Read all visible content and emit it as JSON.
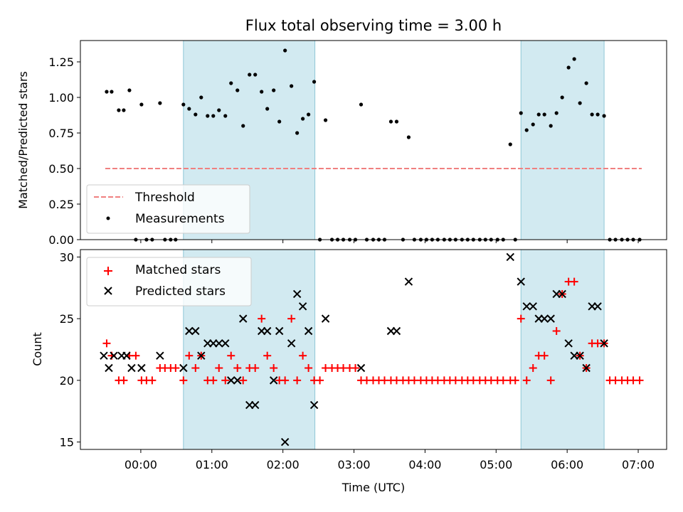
{
  "chart_data": [
    {
      "type": "scatter",
      "title": "Flux total observing time = 3.00 h",
      "xlabel": "",
      "ylabel": "Matched/Predicted stars",
      "ylim": [
        0,
        1.4
      ],
      "yticks": [
        "0.00",
        "0.25",
        "0.50",
        "0.75",
        "1.00",
        "1.25"
      ],
      "xlim_hours": [
        -0.85,
        7.4
      ],
      "shaded_intervals_hours": [
        [
          0.6,
          2.45
        ],
        [
          5.35,
          6.52
        ]
      ],
      "shade_color": "#add8e6",
      "threshold": {
        "name": "Threshold",
        "value": 0.5,
        "x_range_hours": [
          -0.5,
          7.05
        ],
        "color": "#f08080"
      },
      "legend_position": "lower-left",
      "series": [
        {
          "name": "Measurements",
          "color": "#000000",
          "points": [
            [
              -0.48,
              1.04
            ],
            [
              -0.41,
              1.04
            ],
            [
              -0.31,
              0.91
            ],
            [
              -0.24,
              0.91
            ],
            [
              -0.16,
              1.05
            ],
            [
              -0.07,
              0
            ],
            [
              0.01,
              0.95
            ],
            [
              0.08,
              0
            ],
            [
              0.16,
              0
            ],
            [
              0.27,
              0.96
            ],
            [
              0.34,
              0
            ],
            [
              0.42,
              0
            ],
            [
              0.49,
              0
            ],
            [
              0.6,
              0.95
            ],
            [
              0.68,
              0.92
            ],
            [
              0.77,
              0.88
            ],
            [
              0.85,
              1.0
            ],
            [
              0.94,
              0.87
            ],
            [
              1.02,
              0.87
            ],
            [
              1.1,
              0.91
            ],
            [
              1.19,
              0.87
            ],
            [
              1.27,
              1.1
            ],
            [
              1.36,
              1.05
            ],
            [
              1.44,
              0.8
            ],
            [
              1.53,
              1.16
            ],
            [
              1.61,
              1.16
            ],
            [
              1.7,
              1.04
            ],
            [
              1.78,
              0.92
            ],
            [
              1.87,
              1.05
            ],
            [
              1.95,
              0.83
            ],
            [
              2.03,
              1.33
            ],
            [
              2.12,
              1.08
            ],
            [
              2.2,
              0.75
            ],
            [
              2.28,
              0.85
            ],
            [
              2.36,
              0.88
            ],
            [
              2.44,
              1.11
            ],
            [
              2.52,
              0
            ],
            [
              2.6,
              0.84
            ],
            [
              2.69,
              0
            ],
            [
              2.77,
              0
            ],
            [
              2.85,
              0
            ],
            [
              2.94,
              0
            ],
            [
              3.02,
              0
            ],
            [
              3.1,
              0.95
            ],
            [
              3.18,
              0
            ],
            [
              3.27,
              0
            ],
            [
              3.35,
              0
            ],
            [
              3.43,
              0
            ],
            [
              3.52,
              0.83
            ],
            [
              3.6,
              0.83
            ],
            [
              3.69,
              0
            ],
            [
              3.77,
              0.72
            ],
            [
              3.85,
              0
            ],
            [
              3.94,
              0
            ],
            [
              4.02,
              0
            ],
            [
              4.1,
              0
            ],
            [
              4.18,
              0
            ],
            [
              4.27,
              0
            ],
            [
              4.35,
              0
            ],
            [
              4.43,
              0
            ],
            [
              4.52,
              0
            ],
            [
              4.6,
              0
            ],
            [
              4.68,
              0
            ],
            [
              4.77,
              0
            ],
            [
              4.85,
              0
            ],
            [
              4.93,
              0
            ],
            [
              5.02,
              0
            ],
            [
              5.1,
              0
            ],
            [
              5.2,
              0.67
            ],
            [
              5.27,
              0
            ],
            [
              5.35,
              0.89
            ],
            [
              5.43,
              0.77
            ],
            [
              5.52,
              0.81
            ],
            [
              5.6,
              0.88
            ],
            [
              5.68,
              0.88
            ],
            [
              5.77,
              0.8
            ],
            [
              5.85,
              0.89
            ],
            [
              5.93,
              1.0
            ],
            [
              6.02,
              1.21
            ],
            [
              6.1,
              1.27
            ],
            [
              6.18,
              0.96
            ],
            [
              6.27,
              1.1
            ],
            [
              6.35,
              0.88
            ],
            [
              6.43,
              0.88
            ],
            [
              6.52,
              0.87
            ],
            [
              6.6,
              0
            ],
            [
              6.68,
              0
            ],
            [
              6.77,
              0
            ],
            [
              6.85,
              0
            ],
            [
              6.93,
              0
            ],
            [
              7.02,
              0
            ]
          ]
        }
      ]
    },
    {
      "type": "scatter",
      "title": "",
      "xlabel": "Time (UTC)",
      "ylabel": "Count",
      "ylim": [
        14.4,
        30.6
      ],
      "yticks": [
        "15",
        "20",
        "25",
        "30"
      ],
      "xticks": [
        "00:00",
        "01:00",
        "02:00",
        "03:00",
        "04:00",
        "05:00",
        "06:00",
        "07:00"
      ],
      "xlim_hours": [
        -0.85,
        7.4
      ],
      "shaded_intervals_hours": [
        [
          0.6,
          2.45
        ],
        [
          5.35,
          6.52
        ]
      ],
      "legend_position": "upper-left",
      "series": [
        {
          "name": "Matched stars",
          "marker": "+",
          "color": "#ff0000",
          "points": [
            [
              -0.48,
              23
            ],
            [
              -0.41,
              22
            ],
            [
              -0.31,
              20
            ],
            [
              -0.24,
              20
            ],
            [
              -0.16,
              22
            ],
            [
              -0.07,
              22
            ],
            [
              0.01,
              20
            ],
            [
              0.08,
              20
            ],
            [
              0.16,
              20
            ],
            [
              0.27,
              21
            ],
            [
              0.34,
              21
            ],
            [
              0.42,
              21
            ],
            [
              0.49,
              21
            ],
            [
              0.6,
              20
            ],
            [
              0.68,
              22
            ],
            [
              0.77,
              21
            ],
            [
              0.85,
              22
            ],
            [
              0.94,
              20
            ],
            [
              1.02,
              20
            ],
            [
              1.1,
              21
            ],
            [
              1.19,
              20
            ],
            [
              1.27,
              22
            ],
            [
              1.36,
              21
            ],
            [
              1.44,
              20
            ],
            [
              1.53,
              21
            ],
            [
              1.61,
              21
            ],
            [
              1.7,
              25
            ],
            [
              1.78,
              22
            ],
            [
              1.87,
              21
            ],
            [
              1.95,
              20
            ],
            [
              2.03,
              20
            ],
            [
              2.12,
              25
            ],
            [
              2.2,
              20
            ],
            [
              2.28,
              22
            ],
            [
              2.36,
              21
            ],
            [
              2.44,
              20
            ],
            [
              2.52,
              20
            ],
            [
              2.6,
              21
            ],
            [
              2.69,
              21
            ],
            [
              2.77,
              21
            ],
            [
              2.85,
              21
            ],
            [
              2.94,
              21
            ],
            [
              3.02,
              21
            ],
            [
              3.1,
              20
            ],
            [
              3.18,
              20
            ],
            [
              3.27,
              20
            ],
            [
              3.35,
              20
            ],
            [
              3.43,
              20
            ],
            [
              3.52,
              20
            ],
            [
              3.6,
              20
            ],
            [
              3.69,
              20
            ],
            [
              3.77,
              20
            ],
            [
              3.85,
              20
            ],
            [
              3.94,
              20
            ],
            [
              4.02,
              20
            ],
            [
              4.1,
              20
            ],
            [
              4.18,
              20
            ],
            [
              4.27,
              20
            ],
            [
              4.35,
              20
            ],
            [
              4.43,
              20
            ],
            [
              4.52,
              20
            ],
            [
              4.6,
              20
            ],
            [
              4.68,
              20
            ],
            [
              4.77,
              20
            ],
            [
              4.85,
              20
            ],
            [
              4.93,
              20
            ],
            [
              5.02,
              20
            ],
            [
              5.1,
              20
            ],
            [
              5.2,
              20
            ],
            [
              5.27,
              20
            ],
            [
              5.35,
              25
            ],
            [
              5.43,
              20
            ],
            [
              5.52,
              21
            ],
            [
              5.6,
              22
            ],
            [
              5.68,
              22
            ],
            [
              5.77,
              20
            ],
            [
              5.85,
              24
            ],
            [
              5.93,
              27
            ],
            [
              6.02,
              28
            ],
            [
              6.1,
              28
            ],
            [
              6.18,
              22
            ],
            [
              6.27,
              21
            ],
            [
              6.35,
              23
            ],
            [
              6.43,
              23
            ],
            [
              6.52,
              23
            ],
            [
              6.6,
              20
            ],
            [
              6.68,
              20
            ],
            [
              6.77,
              20
            ],
            [
              6.85,
              20
            ],
            [
              6.93,
              20
            ],
            [
              7.02,
              20
            ]
          ]
        },
        {
          "name": "Predicted stars",
          "marker": "x",
          "color": "#000000",
          "points": [
            [
              -0.52,
              22
            ],
            [
              -0.45,
              21
            ],
            [
              -0.38,
              22
            ],
            [
              -0.27,
              22
            ],
            [
              -0.2,
              22
            ],
            [
              -0.13,
              21
            ],
            [
              0.01,
              21
            ],
            [
              0.27,
              22
            ],
            [
              0.6,
              21
            ],
            [
              0.68,
              24
            ],
            [
              0.77,
              24
            ],
            [
              0.85,
              22
            ],
            [
              0.94,
              23
            ],
            [
              1.02,
              23
            ],
            [
              1.1,
              23
            ],
            [
              1.19,
              23
            ],
            [
              1.27,
              20
            ],
            [
              1.36,
              20
            ],
            [
              1.44,
              25
            ],
            [
              1.53,
              18
            ],
            [
              1.61,
              18
            ],
            [
              1.7,
              24
            ],
            [
              1.78,
              24
            ],
            [
              1.87,
              20
            ],
            [
              1.95,
              24
            ],
            [
              2.03,
              15
            ],
            [
              2.12,
              23
            ],
            [
              2.2,
              27
            ],
            [
              2.28,
              26
            ],
            [
              2.36,
              24
            ],
            [
              2.44,
              18
            ],
            [
              2.6,
              25
            ],
            [
              3.1,
              21
            ],
            [
              3.52,
              24
            ],
            [
              3.6,
              24
            ],
            [
              3.77,
              28
            ],
            [
              5.2,
              30
            ],
            [
              5.35,
              28
            ],
            [
              5.43,
              26
            ],
            [
              5.52,
              26
            ],
            [
              5.6,
              25
            ],
            [
              5.68,
              25
            ],
            [
              5.77,
              25
            ],
            [
              5.85,
              27
            ],
            [
              5.93,
              27
            ],
            [
              6.02,
              23
            ],
            [
              6.1,
              22
            ],
            [
              6.18,
              22
            ],
            [
              6.27,
              21
            ],
            [
              6.35,
              26
            ],
            [
              6.43,
              26
            ],
            [
              6.52,
              23
            ]
          ]
        }
      ]
    }
  ]
}
